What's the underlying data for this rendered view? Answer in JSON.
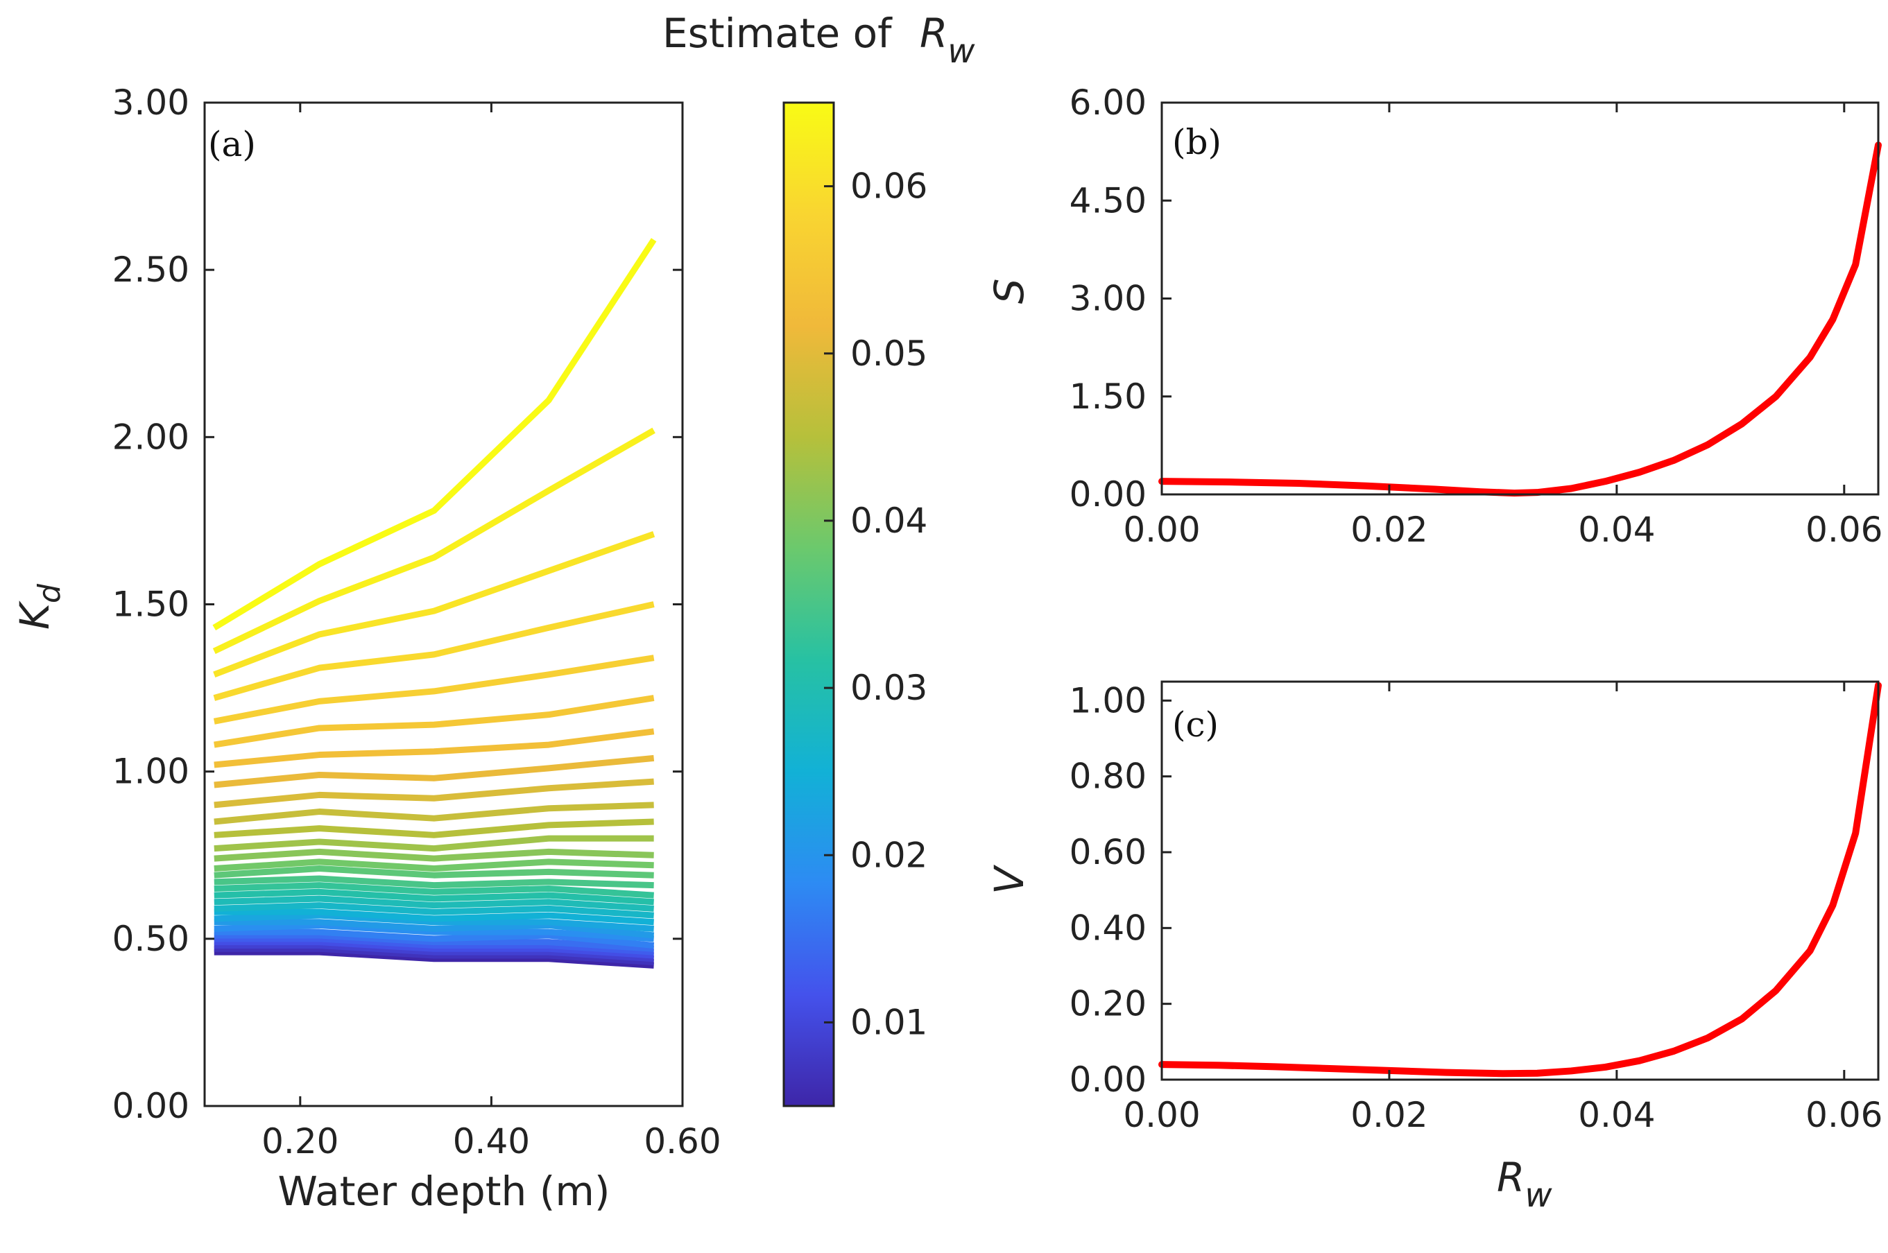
{
  "chart_data": [
    {
      "id": "a",
      "type": "line",
      "panel_label": "(a)",
      "title": "",
      "xlabel": "Water depth (m)",
      "ylabel": "K",
      "ylabel_sub": "d",
      "xlim": [
        0.1,
        0.6
      ],
      "ylim": [
        0,
        3
      ],
      "xticks": [
        0.2,
        0.4,
        0.6
      ],
      "xtick_labels": [
        "0.20",
        "0.40",
        "0.60"
      ],
      "yticks": [
        0,
        0.5,
        1,
        1.5,
        2,
        2.5,
        3
      ],
      "ytick_labels": [
        "0.00",
        "0.50",
        "1.00",
        "1.50",
        "2.00",
        "2.50",
        "3.00"
      ],
      "x": [
        0.11,
        0.22,
        0.34,
        0.46,
        0.57
      ],
      "series": [
        {
          "name": "0.005",
          "values": [
            0.46,
            0.46,
            0.44,
            0.44,
            0.42
          ]
        },
        {
          "name": "0.007",
          "values": [
            0.47,
            0.47,
            0.45,
            0.45,
            0.43
          ]
        },
        {
          "name": "0.009",
          "values": [
            0.48,
            0.48,
            0.46,
            0.46,
            0.44
          ]
        },
        {
          "name": "0.011",
          "values": [
            0.49,
            0.49,
            0.47,
            0.47,
            0.45
          ]
        },
        {
          "name": "0.013",
          "values": [
            0.5,
            0.5,
            0.48,
            0.48,
            0.46
          ]
        },
        {
          "name": "0.015",
          "values": [
            0.51,
            0.51,
            0.49,
            0.49,
            0.47
          ]
        },
        {
          "name": "0.017",
          "values": [
            0.52,
            0.52,
            0.5,
            0.51,
            0.48
          ]
        },
        {
          "name": "0.019",
          "values": [
            0.53,
            0.54,
            0.52,
            0.52,
            0.5
          ]
        },
        {
          "name": "0.021",
          "values": [
            0.55,
            0.55,
            0.53,
            0.54,
            0.51
          ]
        },
        {
          "name": "0.023",
          "values": [
            0.56,
            0.57,
            0.55,
            0.55,
            0.53
          ]
        },
        {
          "name": "0.025",
          "values": [
            0.58,
            0.58,
            0.56,
            0.57,
            0.55
          ]
        },
        {
          "name": "0.027",
          "values": [
            0.59,
            0.6,
            0.58,
            0.59,
            0.57
          ]
        },
        {
          "name": "0.029",
          "values": [
            0.61,
            0.62,
            0.6,
            0.61,
            0.59
          ]
        },
        {
          "name": "0.031",
          "values": [
            0.63,
            0.64,
            0.62,
            0.63,
            0.61
          ]
        },
        {
          "name": "0.033",
          "values": [
            0.65,
            0.66,
            0.64,
            0.65,
            0.63
          ]
        },
        {
          "name": "0.035",
          "values": [
            0.67,
            0.68,
            0.66,
            0.67,
            0.66
          ]
        },
        {
          "name": "0.037",
          "values": [
            0.69,
            0.71,
            0.69,
            0.7,
            0.69
          ]
        },
        {
          "name": "0.039",
          "values": [
            0.71,
            0.73,
            0.71,
            0.73,
            0.72
          ]
        },
        {
          "name": "0.041",
          "values": [
            0.74,
            0.76,
            0.74,
            0.76,
            0.75
          ]
        },
        {
          "name": "0.043",
          "values": [
            0.77,
            0.79,
            0.77,
            0.8,
            0.8
          ]
        },
        {
          "name": "0.045",
          "values": [
            0.81,
            0.83,
            0.81,
            0.84,
            0.85
          ]
        },
        {
          "name": "0.047",
          "values": [
            0.85,
            0.88,
            0.86,
            0.89,
            0.9
          ]
        },
        {
          "name": "0.049",
          "values": [
            0.9,
            0.93,
            0.92,
            0.95,
            0.97
          ]
        },
        {
          "name": "0.051",
          "values": [
            0.96,
            0.99,
            0.98,
            1.01,
            1.04
          ]
        },
        {
          "name": "0.053",
          "values": [
            1.02,
            1.05,
            1.06,
            1.08,
            1.12
          ]
        },
        {
          "name": "0.055",
          "values": [
            1.08,
            1.13,
            1.14,
            1.17,
            1.22
          ]
        },
        {
          "name": "0.057",
          "values": [
            1.15,
            1.21,
            1.24,
            1.29,
            1.34
          ]
        },
        {
          "name": "0.059",
          "values": [
            1.22,
            1.31,
            1.35,
            1.43,
            1.5
          ]
        },
        {
          "name": "0.061",
          "values": [
            1.29,
            1.41,
            1.48,
            1.6,
            1.71
          ]
        },
        {
          "name": "0.063",
          "values": [
            1.36,
            1.51,
            1.64,
            1.84,
            2.02
          ]
        },
        {
          "name": "0.065",
          "values": [
            1.43,
            1.62,
            1.78,
            2.11,
            2.59
          ]
        }
      ],
      "colorbar": {
        "title": "Estimate of",
        "title_symbol": "R",
        "title_sub": "w",
        "range": [
          0.005,
          0.065
        ],
        "ticks": [
          0.01,
          0.02,
          0.03,
          0.04,
          0.05,
          0.06
        ],
        "tick_labels": [
          "0.01",
          "0.02",
          "0.03",
          "0.04",
          "0.05",
          "0.06"
        ],
        "colormap": [
          "#3e26a8",
          "#4452ec",
          "#2d8bf3",
          "#12b1d6",
          "#27c1a3",
          "#6bc96d",
          "#b6c03b",
          "#f0b93a",
          "#f9d531",
          "#f9fb15"
        ]
      }
    },
    {
      "id": "b",
      "type": "line",
      "panel_label": "(b)",
      "xlabel": "",
      "ylabel": "S",
      "xlim": [
        0,
        0.063
      ],
      "ylim": [
        0,
        6
      ],
      "xticks": [
        0,
        0.02,
        0.04,
        0.06
      ],
      "xtick_labels": [
        "0.00",
        "0.02",
        "0.04",
        "0.06"
      ],
      "yticks": [
        0,
        1.5,
        3,
        4.5,
        6
      ],
      "ytick_labels": [
        "0.00",
        "1.50",
        "3.00",
        "4.50",
        "6.00"
      ],
      "line_color": "#ff0000",
      "x": [
        0,
        0.006,
        0.012,
        0.018,
        0.024,
        0.028,
        0.031,
        0.033,
        0.036,
        0.039,
        0.042,
        0.045,
        0.048,
        0.051,
        0.054,
        0.057,
        0.059,
        0.061,
        0.063
      ],
      "y": [
        0.2,
        0.19,
        0.17,
        0.13,
        0.08,
        0.04,
        0.02,
        0.03,
        0.09,
        0.2,
        0.34,
        0.52,
        0.76,
        1.08,
        1.5,
        2.1,
        2.68,
        3.52,
        5.35
      ]
    },
    {
      "id": "c",
      "type": "line",
      "panel_label": "(c)",
      "xlabel": "R",
      "xlabel_sub": "w",
      "ylabel": "V",
      "xlim": [
        0,
        0.063
      ],
      "ylim": [
        0,
        1.05
      ],
      "xticks": [
        0,
        0.02,
        0.04,
        0.06
      ],
      "xtick_labels": [
        "0.00",
        "0.02",
        "0.04",
        "0.06"
      ],
      "yticks": [
        0,
        0.2,
        0.4,
        0.6,
        0.8,
        1.0
      ],
      "ytick_labels": [
        "0.00",
        "0.20",
        "0.40",
        "0.60",
        "0.80",
        "1.00"
      ],
      "line_color": "#ff0000",
      "x": [
        0,
        0.005,
        0.01,
        0.015,
        0.02,
        0.025,
        0.03,
        0.033,
        0.036,
        0.039,
        0.042,
        0.045,
        0.048,
        0.051,
        0.054,
        0.057,
        0.059,
        0.061,
        0.063
      ],
      "y": [
        0.04,
        0.038,
        0.034,
        0.029,
        0.024,
        0.019,
        0.016,
        0.017,
        0.023,
        0.033,
        0.05,
        0.075,
        0.11,
        0.16,
        0.235,
        0.34,
        0.46,
        0.65,
        1.04
      ]
    }
  ]
}
